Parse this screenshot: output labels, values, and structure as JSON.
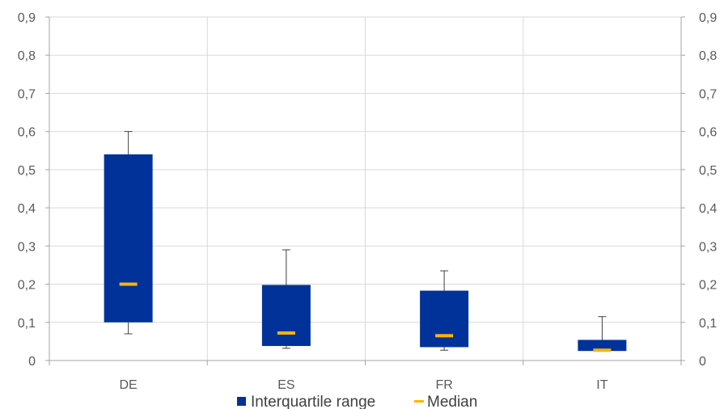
{
  "chart_data": {
    "type": "boxplot",
    "categories": [
      "DE",
      "ES",
      "FR",
      "IT"
    ],
    "whisker_low": [
      0.07,
      0.032,
      0.027,
      0.025
    ],
    "q1": [
      0.1,
      0.038,
      0.035,
      0.025
    ],
    "median": [
      0.2,
      0.072,
      0.065,
      0.027
    ],
    "q3": [
      0.54,
      0.198,
      0.183,
      0.054
    ],
    "whisker_high": [
      0.6,
      0.29,
      0.235,
      0.115
    ],
    "ylim": [
      0,
      0.9
    ],
    "yticks": [
      "0",
      "0,1",
      "0,2",
      "0,3",
      "0,4",
      "0,5",
      "0,6",
      "0,7",
      "0,8",
      "0,9"
    ],
    "ytick_values": [
      0,
      0.1,
      0.2,
      0.3,
      0.4,
      0.5,
      0.6,
      0.7,
      0.8,
      0.9
    ],
    "dual_y_axis": true,
    "grid": true,
    "legend_position": "bottom",
    "legend": [
      {
        "label": "Interquartile range",
        "color": "#003299",
        "marker": "square"
      },
      {
        "label": "Median",
        "color": "#FFB400",
        "marker": "dash"
      }
    ],
    "colors": {
      "box": "#003299",
      "median": "#FFB400",
      "whisker": "#404040",
      "grid": "#D9D9D9",
      "axis": "#A6A6A6"
    }
  }
}
